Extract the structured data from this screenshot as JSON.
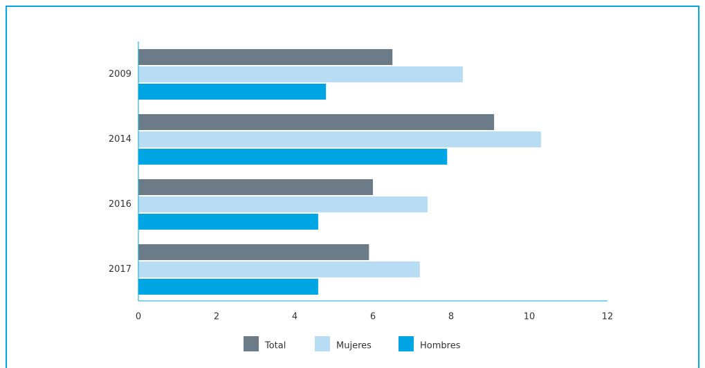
{
  "chart_data": {
    "type": "hbar",
    "categories": [
      "2009",
      "2014",
      "2016",
      "2017"
    ],
    "series": [
      {
        "name": "Total",
        "color": "#6b7c88",
        "values": [
          6.5,
          9.1,
          6.0,
          5.9
        ]
      },
      {
        "name": "Mujeres",
        "color": "#b7dcf3",
        "values": [
          8.3,
          10.3,
          7.4,
          7.2
        ]
      },
      {
        "name": "Hombres",
        "color": "#00a5e3",
        "values": [
          4.8,
          7.9,
          4.6,
          4.6
        ]
      }
    ],
    "xlim": [
      0,
      12
    ],
    "xticks": [
      0,
      2,
      4,
      6,
      8,
      10,
      12
    ],
    "legend": "bottom"
  }
}
